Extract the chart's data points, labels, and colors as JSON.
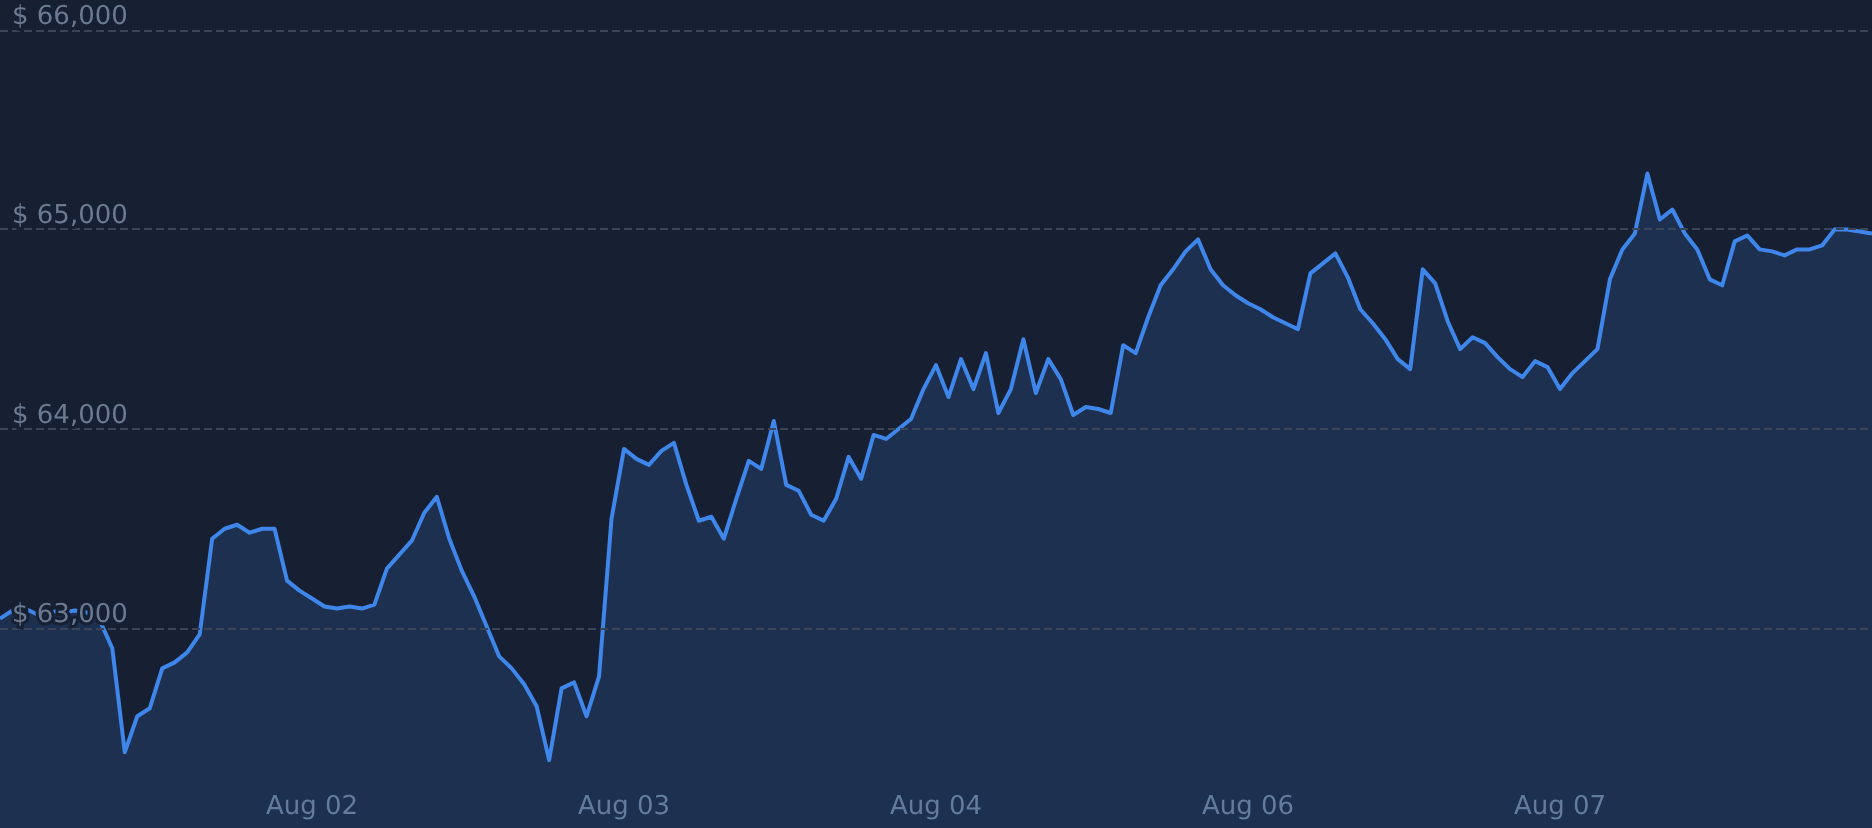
{
  "chart_data": {
    "type": "area",
    "categories": [
      null,
      null,
      null,
      null,
      null,
      null,
      null,
      null,
      null,
      null,
      null,
      null,
      null,
      null,
      null,
      null,
      null,
      null,
      null,
      null,
      null,
      null,
      null,
      null,
      null,
      "Aug 02",
      null,
      null,
      null,
      null,
      null,
      null,
      null,
      null,
      null,
      null,
      null,
      null,
      null,
      null,
      null,
      null,
      null,
      null,
      null,
      null,
      null,
      null,
      null,
      null,
      "Aug 03",
      null,
      null,
      null,
      null,
      null,
      null,
      null,
      null,
      null,
      null,
      null,
      null,
      null,
      null,
      null,
      null,
      null,
      null,
      null,
      null,
      null,
      null,
      null,
      null,
      "Aug 04",
      null,
      null,
      null,
      null,
      null,
      null,
      null,
      null,
      null,
      null,
      null,
      null,
      null,
      null,
      null,
      null,
      null,
      null,
      null,
      null,
      null,
      null,
      null,
      null,
      "Aug 06",
      null,
      null,
      null,
      null,
      null,
      null,
      null,
      null,
      null,
      null,
      null,
      null,
      null,
      null,
      null,
      null,
      null,
      null,
      null,
      null,
      null,
      null,
      null,
      null,
      "Aug 07",
      null,
      null,
      null,
      null,
      null,
      null,
      null,
      null,
      null,
      null,
      null,
      null,
      null,
      null,
      null,
      null,
      null,
      null,
      null,
      null,
      null,
      null,
      null,
      null,
      null
    ],
    "series": [
      {
        "color": "#3f86ea",
        "values": [
          63050,
          63090,
          63100,
          63070,
          63090,
          63080,
          63090,
          63080,
          63040,
          62900,
          62380,
          62560,
          62600,
          62800,
          62830,
          62880,
          62970,
          63450,
          63500,
          63520,
          63480,
          63500,
          63500,
          63240,
          63190,
          63150,
          63110,
          63100,
          63110,
          63100,
          63120,
          63300,
          63370,
          63440,
          63580,
          63660,
          63450,
          63290,
          63160,
          63010,
          62860,
          62800,
          62720,
          62610,
          62340,
          62700,
          62730,
          62560,
          62760,
          63550,
          63900,
          63850,
          63820,
          63890,
          63930,
          63720,
          63540,
          63560,
          63450,
          63650,
          63840,
          63800,
          64040,
          63720,
          63690,
          63570,
          63540,
          63650,
          63860,
          63750,
          63970,
          63950,
          64000,
          64050,
          64200,
          64320,
          64160,
          64350,
          64200,
          64380,
          64080,
          64200,
          64450,
          64180,
          64350,
          64250,
          64070,
          64110,
          64100,
          64080,
          64420,
          64380,
          64560,
          64720,
          64800,
          64890,
          64950,
          64800,
          64720,
          64670,
          64630,
          64600,
          64560,
          64530,
          64500,
          64780,
          64830,
          64880,
          64760,
          64600,
          64530,
          64450,
          64350,
          64300,
          64800,
          64730,
          64540,
          64400,
          64460,
          64430,
          64360,
          64300,
          64260,
          64340,
          64310,
          64200,
          64280,
          64340,
          64400,
          64750,
          64900,
          64980,
          65280,
          65050,
          65100,
          64980,
          64900,
          64750,
          64720,
          64940,
          64970,
          64900,
          64890,
          64870,
          64900,
          64900,
          64920,
          65000,
          65000,
          64990,
          64980
        ]
      }
    ],
    "ylim": [
      62000,
      66150
    ],
    "yticks": [
      {
        "value": 63000,
        "label": "$ 63,000"
      },
      {
        "value": 64000,
        "label": "$ 64,000"
      },
      {
        "value": 65000,
        "label": "$ 65,000"
      },
      {
        "value": 66000,
        "label": "$ 66,000"
      }
    ],
    "grid": "y",
    "marker": "none",
    "line_style": "solid"
  }
}
